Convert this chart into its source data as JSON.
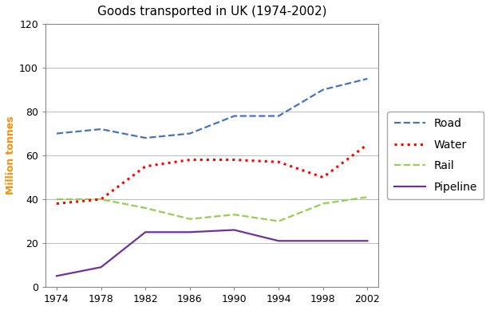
{
  "title": "Goods transported in UK (1974-2002)",
  "ylabel": "Million tonnes",
  "years": [
    1974,
    1978,
    1982,
    1986,
    1990,
    1994,
    1998,
    2002
  ],
  "road": [
    70,
    72,
    68,
    70,
    78,
    78,
    90,
    95
  ],
  "water": [
    38,
    40,
    55,
    58,
    58,
    57,
    50,
    65
  ],
  "rail": [
    40,
    40,
    36,
    31,
    33,
    30,
    38,
    41
  ],
  "pipeline": [
    5,
    9,
    25,
    25,
    26,
    21,
    21,
    21
  ],
  "road_color": "#4472C4",
  "water_color": "#FF0000",
  "rail_color": "#92D050",
  "pipeline_color": "#7030A0",
  "ylim": [
    0,
    120
  ],
  "yticks": [
    0,
    20,
    40,
    60,
    80,
    100,
    120
  ],
  "xlim": [
    1973,
    2003
  ],
  "background_color": "#FFFFFF",
  "plot_bg_color": "#FFFFFF",
  "grid_color": "#BBBBBB",
  "title_fontsize": 11,
  "ylabel_fontsize": 9,
  "tick_fontsize": 9,
  "legend_fontsize": 10
}
